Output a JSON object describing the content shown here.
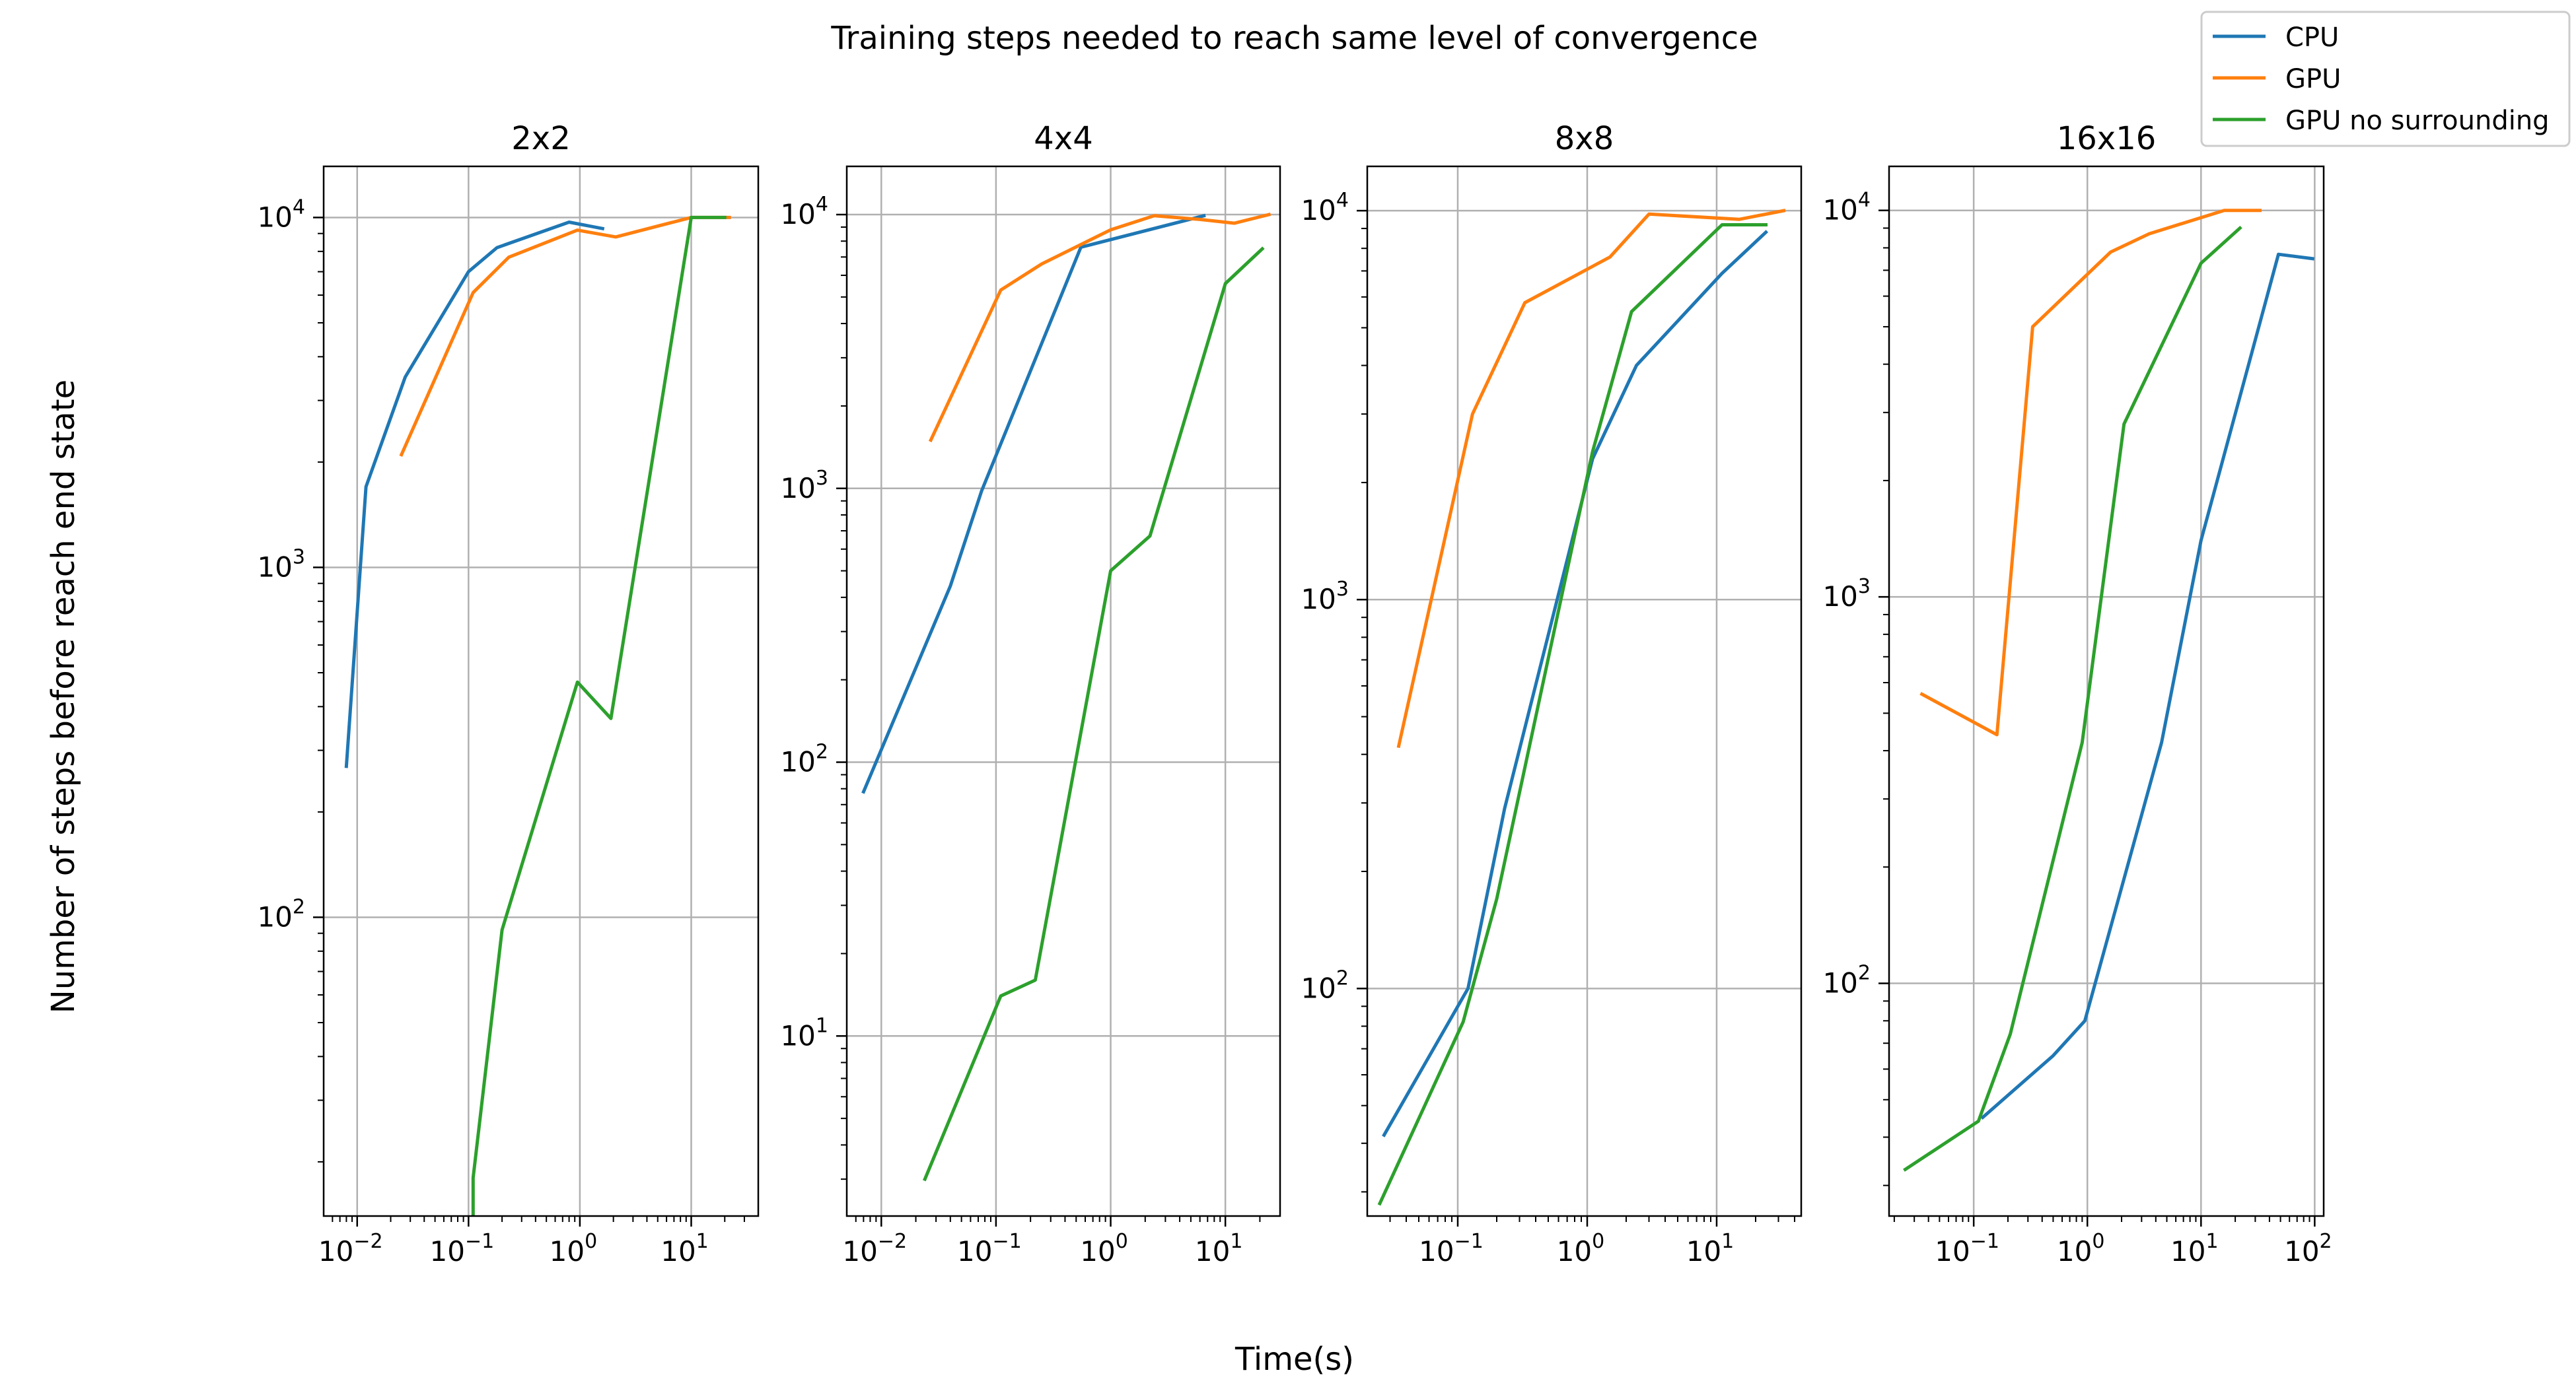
{
  "figure": {
    "suptitle": "Training steps needed to reach same level of convergence",
    "xlabel": "Time(s)",
    "ylabel": "Number of steps before reach end state"
  },
  "legend": {
    "placement": "top-right",
    "entries": [
      {
        "name": "CPU",
        "color": "#1f77b4"
      },
      {
        "name": "GPU",
        "color": "#ff7f0e"
      },
      {
        "name": "GPU no surrounding",
        "color": "#2ca02c"
      }
    ]
  },
  "chart_data": [
    {
      "type": "line",
      "title": "2x2",
      "xscale": "log",
      "yscale": "log",
      "xlim": [
        0.005,
        40
      ],
      "ylim": [
        14,
        14000
      ],
      "xticks": [
        0.01,
        0.1,
        1,
        10
      ],
      "xticklabels": [
        [
          "10",
          "−2"
        ],
        [
          "10",
          "−1"
        ],
        [
          "10",
          "0"
        ],
        [
          "10",
          "1"
        ]
      ],
      "yticks": [
        100,
        1000,
        10000
      ],
      "yticklabels": [
        [
          "10",
          "2"
        ],
        [
          "10",
          "3"
        ],
        [
          "10",
          "4"
        ]
      ],
      "grid": true,
      "series": [
        {
          "name": "CPU",
          "color": "#1f77b4",
          "x": [
            0.008,
            0.012,
            0.027,
            0.1,
            0.18,
            0.8,
            1.6
          ],
          "y": [
            270,
            1700,
            3500,
            7000,
            8200,
            9700,
            9300
          ]
        },
        {
          "name": "GPU",
          "color": "#ff7f0e",
          "x": [
            0.025,
            0.11,
            0.23,
            0.95,
            2.1,
            10,
            22
          ],
          "y": [
            2100,
            6100,
            7700,
            9200,
            8800,
            10000,
            10000
          ]
        },
        {
          "name": "GPU no surrounding",
          "color": "#2ca02c",
          "x": [
            0.11,
            0.11,
            0.2,
            0.95,
            1.9,
            10,
            20
          ],
          "y": [
            14,
            18,
            92,
            470,
            370,
            10000,
            10000
          ]
        }
      ]
    },
    {
      "type": "line",
      "title": "4x4",
      "xscale": "log",
      "yscale": "log",
      "xlim": [
        0.005,
        30
      ],
      "ylim": [
        2.2,
        15000
      ],
      "xticks": [
        0.01,
        0.1,
        1,
        10
      ],
      "xticklabels": [
        [
          "10",
          "−2"
        ],
        [
          "10",
          "−1"
        ],
        [
          "10",
          "0"
        ],
        [
          "10",
          "1"
        ]
      ],
      "yticks": [
        10,
        100,
        1000,
        10000
      ],
      "yticklabels": [
        [
          "10",
          "1"
        ],
        [
          "10",
          "2"
        ],
        [
          "10",
          "3"
        ],
        [
          "10",
          "4"
        ]
      ],
      "grid": true,
      "series": [
        {
          "name": "CPU",
          "color": "#1f77b4",
          "x": [
            0.007,
            0.04,
            0.075,
            0.55,
            6.5
          ],
          "y": [
            78,
            440,
            980,
            7600,
            9900
          ]
        },
        {
          "name": "GPU",
          "color": "#ff7f0e",
          "x": [
            0.027,
            0.11,
            0.25,
            1,
            2.4,
            6,
            12,
            24
          ],
          "y": [
            1500,
            5300,
            6600,
            8800,
            9900,
            9600,
            9300,
            10000
          ]
        },
        {
          "name": "GPU no surrounding",
          "color": "#2ca02c",
          "x": [
            0.024,
            0.11,
            0.22,
            1,
            2.2,
            10,
            21
          ],
          "y": [
            3,
            14,
            16,
            500,
            670,
            5600,
            7500
          ]
        }
      ]
    },
    {
      "type": "line",
      "title": "8x8",
      "xscale": "log",
      "yscale": "log",
      "xlim": [
        0.02,
        45
      ],
      "ylim": [
        26,
        13000
      ],
      "xticks": [
        0.1,
        1,
        10
      ],
      "xticklabels": [
        [
          "10",
          "−1"
        ],
        [
          "10",
          "0"
        ],
        [
          "10",
          "1"
        ]
      ],
      "yticks": [
        100,
        1000,
        10000
      ],
      "yticklabels": [
        [
          "10",
          "2"
        ],
        [
          "10",
          "3"
        ],
        [
          "10",
          "4"
        ]
      ],
      "grid": true,
      "series": [
        {
          "name": "CPU",
          "color": "#1f77b4",
          "x": [
            0.027,
            0.12,
            0.23,
            1.1,
            2.4,
            11,
            24
          ],
          "y": [
            42,
            100,
            290,
            2300,
            4000,
            6900,
            8800
          ]
        },
        {
          "name": "GPU",
          "color": "#ff7f0e",
          "x": [
            0.035,
            0.13,
            0.33,
            1.5,
            3,
            15,
            33
          ],
          "y": [
            420,
            3000,
            5800,
            7600,
            9800,
            9500,
            10000
          ]
        },
        {
          "name": "GPU no surrounding",
          "color": "#2ca02c",
          "x": [
            0.025,
            0.11,
            0.2,
            1.1,
            2.2,
            11,
            24
          ],
          "y": [
            28,
            82,
            170,
            2400,
            5500,
            9200,
            9200
          ]
        }
      ]
    },
    {
      "type": "line",
      "title": "16x16",
      "xscale": "log",
      "yscale": "log",
      "xlim": [
        0.018,
        120
      ],
      "ylim": [
        25,
        13000
      ],
      "xticks": [
        0.1,
        1,
        10,
        100
      ],
      "xticklabels": [
        [
          "10",
          "−1"
        ],
        [
          "10",
          "0"
        ],
        [
          "10",
          "1"
        ],
        [
          "10",
          "2"
        ]
      ],
      "yticks": [
        100,
        1000,
        10000
      ],
      "yticklabels": [
        [
          "10",
          "2"
        ],
        [
          "10",
          "3"
        ],
        [
          "10",
          "4"
        ]
      ],
      "grid": true,
      "series": [
        {
          "name": "CPU",
          "color": "#1f77b4",
          "x": [
            0.12,
            0.5,
            0.95,
            4.5,
            10,
            48,
            96
          ],
          "y": [
            45,
            65,
            80,
            420,
            1400,
            7700,
            7500
          ]
        },
        {
          "name": "GPU",
          "color": "#ff7f0e",
          "x": [
            0.035,
            0.16,
            0.33,
            1.6,
            3.5,
            16,
            33
          ],
          "y": [
            560,
            440,
            5000,
            7800,
            8700,
            10000,
            10000
          ]
        },
        {
          "name": "GPU no surrounding",
          "color": "#2ca02c",
          "x": [
            0.025,
            0.11,
            0.21,
            0.9,
            2.1,
            10,
            22
          ],
          "y": [
            33,
            44,
            74,
            420,
            2800,
            7300,
            9000
          ]
        }
      ]
    }
  ]
}
